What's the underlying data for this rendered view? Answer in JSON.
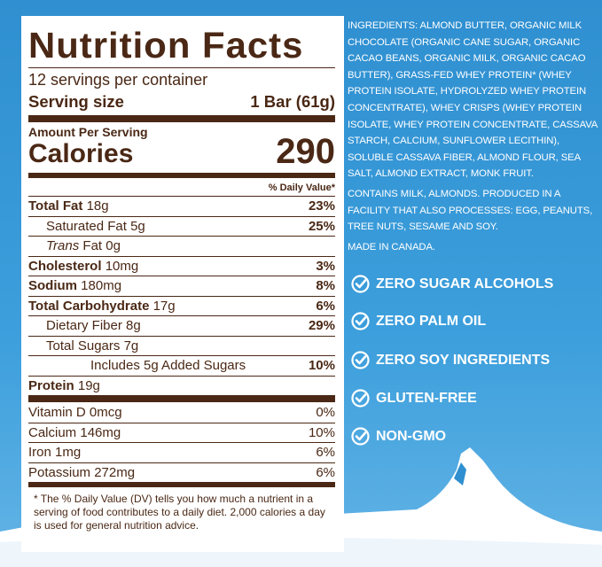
{
  "nutrition": {
    "title": "Nutrition Facts",
    "servings": "12 servings per container",
    "serving_size": {
      "label": "Serving size",
      "value": "1 Bar (61g)"
    },
    "amount_per_serving": "Amount Per Serving",
    "calories": {
      "label": "Calories",
      "value": "290"
    },
    "dv_header": "% Daily Value*",
    "rows": [
      {
        "label": "Total Fat",
        "amount": "18g",
        "dv": "23%"
      },
      {
        "label": "Saturated Fat",
        "amount": "5g",
        "dv": "25%"
      },
      {
        "prefix": "Trans",
        "label": "Fat",
        "amount": "0g"
      },
      {
        "label": "Cholesterol",
        "amount": "10mg",
        "dv": "3%"
      },
      {
        "label": "Sodium",
        "amount": "180mg",
        "dv": "8%"
      },
      {
        "label": "Total Carbohydrate",
        "amount": "17g",
        "dv": "6%"
      },
      {
        "label": "Dietary Fiber",
        "amount": "8g",
        "dv": "29%"
      },
      {
        "label": "Total Sugars",
        "amount": "7g"
      },
      {
        "label": "Includes 5g Added Sugars",
        "dv": "10%"
      },
      {
        "label": "Protein",
        "amount": "19g"
      }
    ],
    "vitamins": [
      {
        "label": "Vitamin D",
        "amount": "0mcg",
        "dv": "0%"
      },
      {
        "label": "Calcium",
        "amount": "146mg",
        "dv": "10%"
      },
      {
        "label": "Iron",
        "amount": "1mg",
        "dv": "6%"
      },
      {
        "label": "Potassium",
        "amount": "272mg",
        "dv": "6%"
      }
    ],
    "footnote": "* The % Daily Value (DV) tells you how much a nutrient in a serving of food contributes to a daily diet. 2,000 calories a day is used for general nutrition advice."
  },
  "ingredients": "INGREDIENTS: ALMOND BUTTER, ORGANIC MILK CHOCOLATE (ORGANIC CANE SUGAR, ORGANIC CACAO BEANS, ORGANIC MILK, ORGANIC CACAO BUTTER), GRASS-FED WHEY PROTEIN* (WHEY PROTEIN ISOLATE, HYDROLYZED WHEY PROTEIN CONCENTRATE), WHEY CRISPS (WHEY PROTEIN ISOLATE, WHEY PROTEIN CONCENTRATE, CASSAVA STARCH, CALCIUM, SUNFLOWER LECITHIN), SOLUBLE CASSAVA FIBER, ALMOND FLOUR, SEA SALT, ALMOND EXTRACT, MONK FRUIT.",
  "allergens": "CONTAINS MILK, ALMONDS. PRODUCED IN A FACILITY THAT ALSO PROCESSES: EGG, PEANUTS, TREE NUTS, SESAME AND SOY.",
  "origin": "MADE IN CANADA.",
  "claims": [
    "ZERO SUGAR ALCOHOLS",
    "ZERO PALM OIL",
    "ZERO SOY INGREDIENTS",
    "GLUTEN-FREE",
    "NON-GMO"
  ]
}
